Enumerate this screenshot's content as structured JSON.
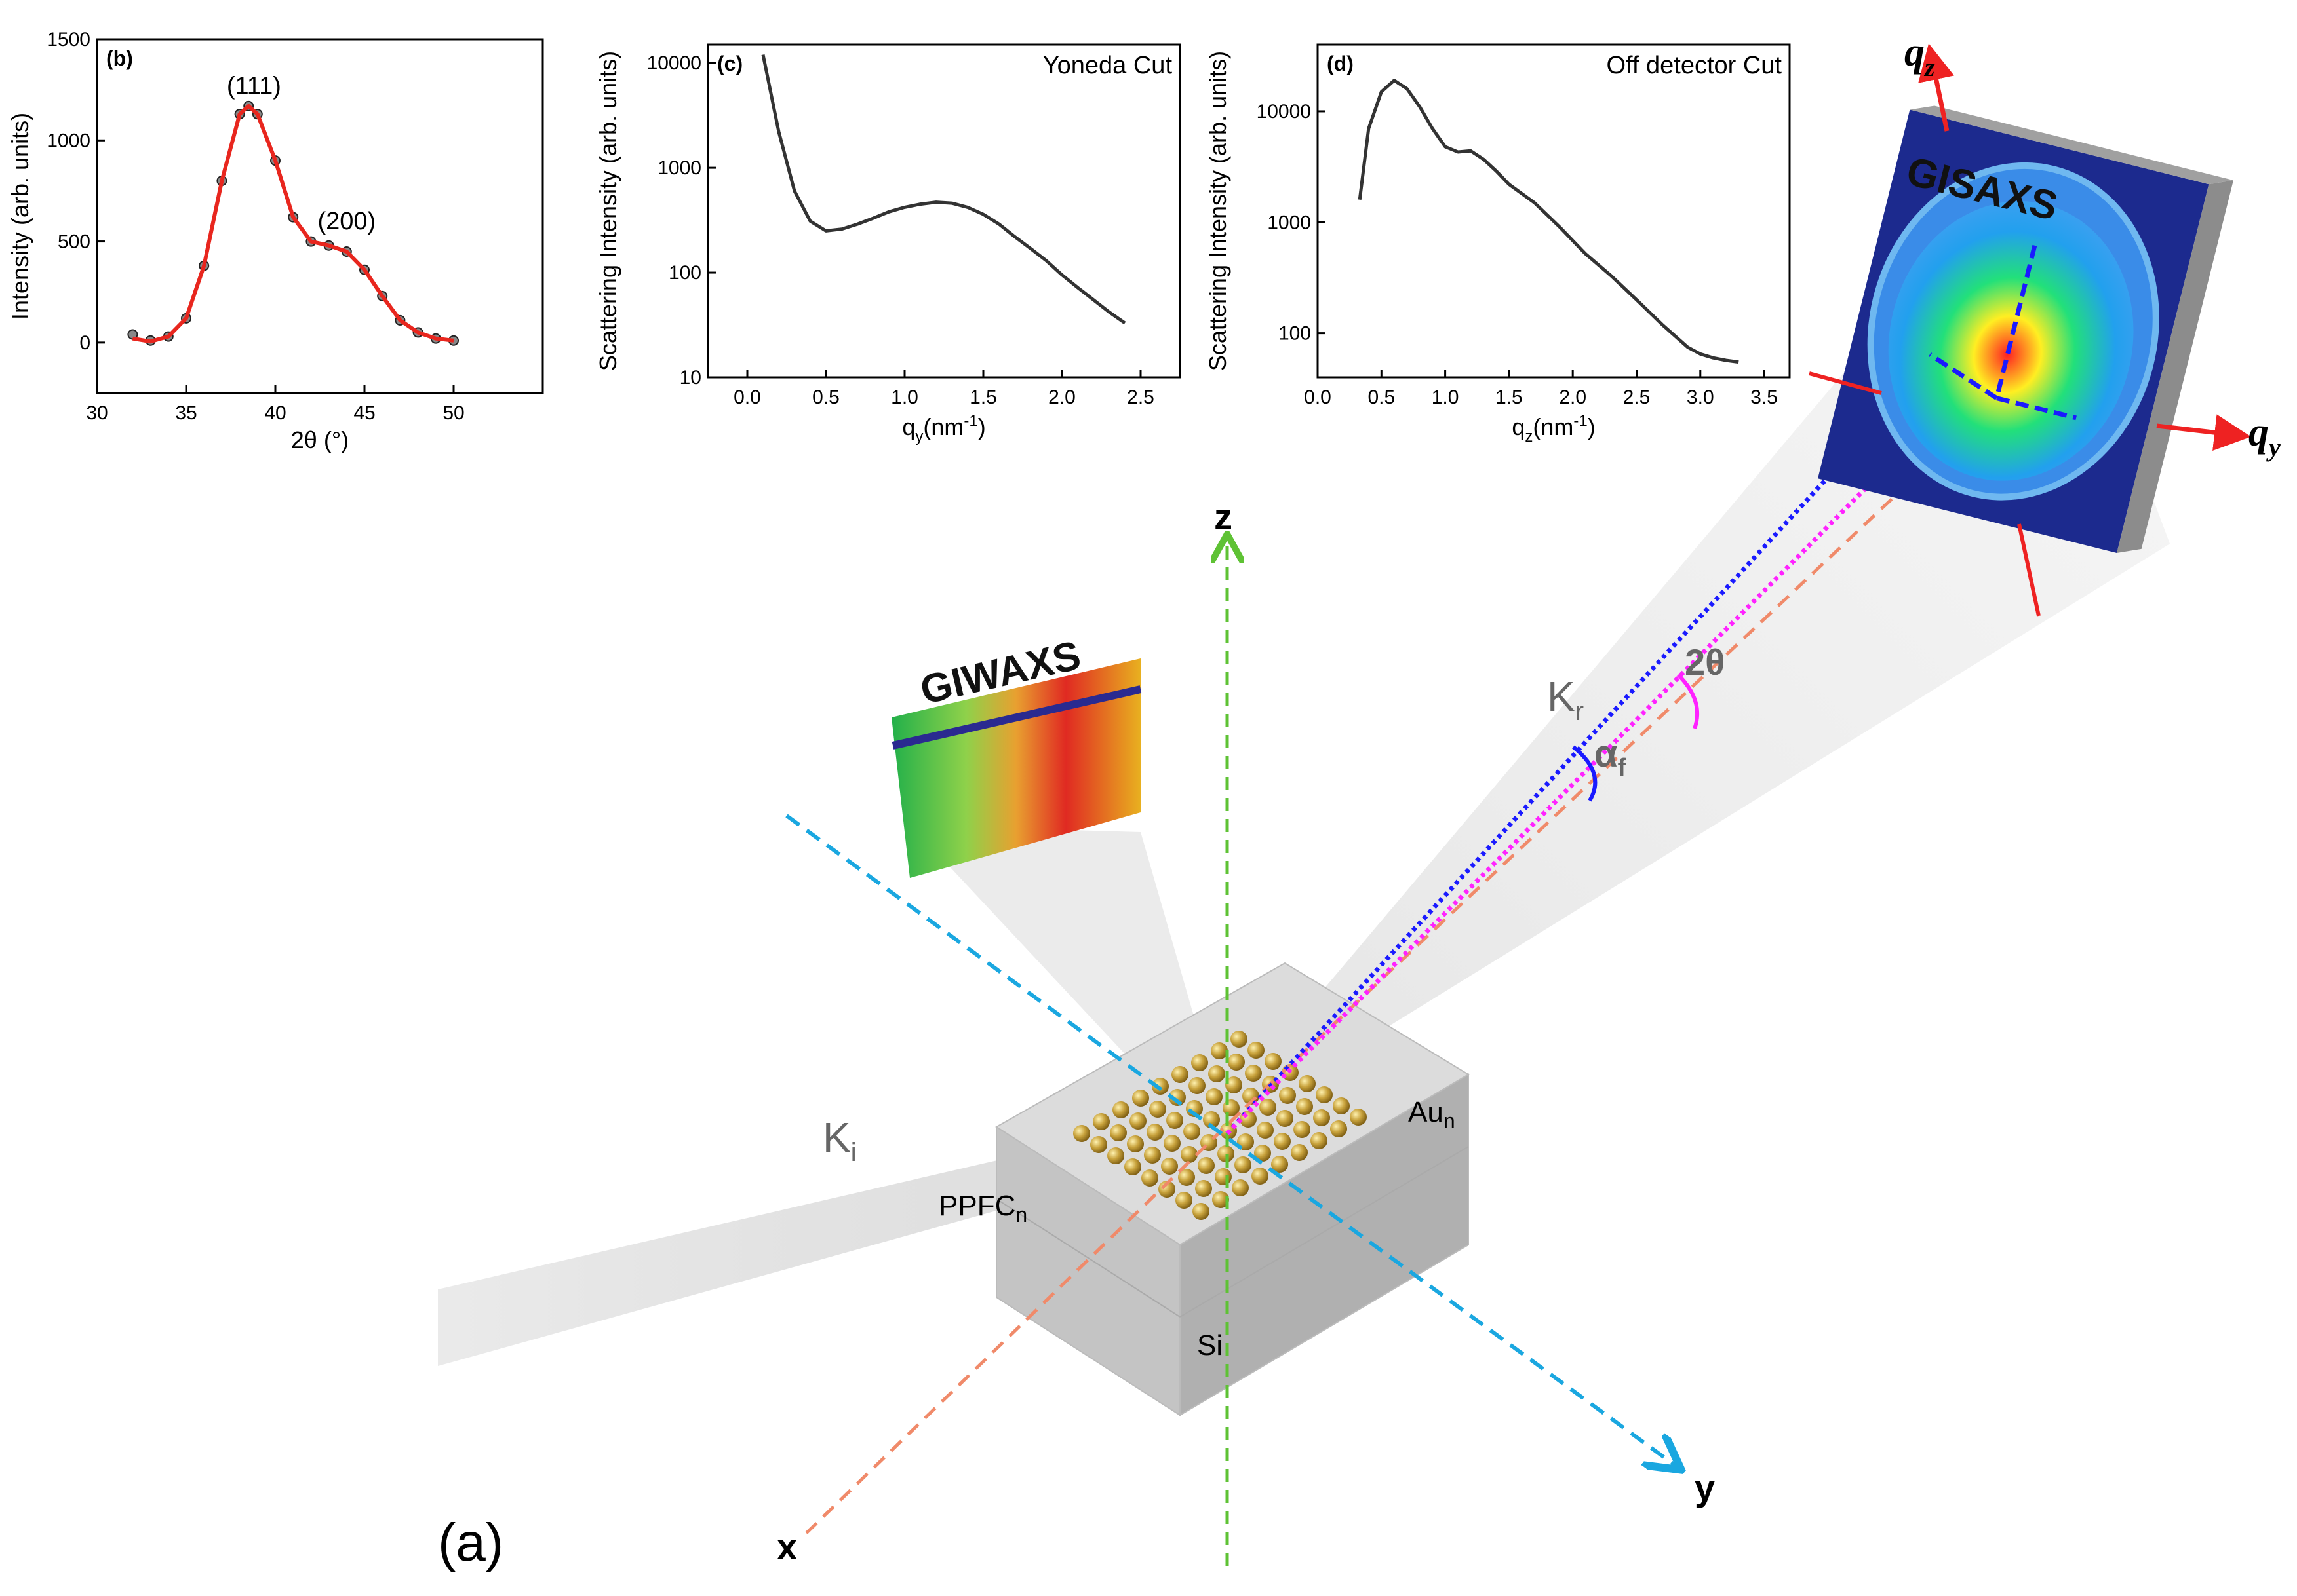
{
  "figure_label": "(a)",
  "diagram": {
    "axis_x": "x",
    "axis_y": "y",
    "axis_z": "z",
    "k_incident": "K",
    "k_incident_sub": "i",
    "k_reflected": "K",
    "k_reflected_sub": "r",
    "alpha_f": "α",
    "alpha_f_sub": "f",
    "two_theta": "2θ",
    "label_ppfc": "PPFC",
    "label_ppfc_sub": "n",
    "label_au": "Au",
    "label_au_sub": "n",
    "label_si": "Si",
    "giwaxs_title": "GIWAXS",
    "gisaxs_title": "GISAXS",
    "qz_label": "q",
    "qz_sub": "z",
    "qy_label": "q",
    "qy_sub": "y",
    "colors": {
      "z_axis": "#5ec234",
      "y_axis": "#1aa7e0",
      "x_axis": "#f08a6a",
      "kr_beam": "#1a1aff",
      "two_theta_beam": "#ff22ff",
      "detector_axes": "#ee2222",
      "nanoparticle": "#c8a23c"
    }
  },
  "chart_data": [
    {
      "id": "b",
      "panel_label": "(b)",
      "type": "scatter",
      "title": "",
      "xlabel": "2θ (°)",
      "ylabel": "Intensity (arb. units)",
      "xlim": [
        30,
        55
      ],
      "ylim": [
        -250,
        1500
      ],
      "xticks": [
        30,
        35,
        40,
        45,
        50
      ],
      "yticks": [
        0,
        500,
        1000,
        1500
      ],
      "annotations": [
        {
          "text": "(111)",
          "x": 38.8,
          "y": 1230
        },
        {
          "text": "(200)",
          "x": 44.0,
          "y": 560
        }
      ],
      "series": [
        {
          "name": "data",
          "style": "markers",
          "x": [
            32,
            33,
            34,
            35,
            36,
            37,
            38,
            38.5,
            39,
            40,
            41,
            42,
            43,
            44,
            45,
            46,
            47,
            48,
            49,
            50
          ],
          "y": [
            40,
            10,
            30,
            120,
            380,
            800,
            1130,
            1170,
            1130,
            900,
            620,
            500,
            480,
            450,
            360,
            230,
            110,
            50,
            20,
            10
          ]
        },
        {
          "name": "fit",
          "style": "line",
          "color": "#e8261e",
          "x": [
            32,
            33,
            34,
            35,
            36,
            37,
            38,
            38.5,
            39,
            40,
            41,
            42,
            43,
            44,
            45,
            46,
            47,
            48,
            49,
            50
          ],
          "y": [
            20,
            5,
            30,
            120,
            380,
            800,
            1130,
            1170,
            1130,
            900,
            620,
            500,
            480,
            450,
            360,
            230,
            110,
            50,
            20,
            10
          ]
        }
      ]
    },
    {
      "id": "c",
      "panel_label": "(c)",
      "type": "line",
      "title": "Yoneda Cut",
      "xlabel": "qy(nm-1)",
      "xlabel_main": "q",
      "xlabel_sub": "y",
      "xlabel_rest": "(nm",
      "xlabel_sup": "-1",
      "xlabel_end": ")",
      "ylabel": "Scattering Intensity (arb. units)",
      "yscale": "log",
      "xlim": [
        -0.25,
        2.75
      ],
      "ylim": [
        10,
        15000
      ],
      "xticks": [
        0.0,
        0.5,
        1.0,
        1.5,
        2.0,
        2.5
      ],
      "yticks": [
        10,
        100,
        1000,
        10000
      ],
      "series": [
        {
          "name": "yoneda",
          "x": [
            0.1,
            0.2,
            0.3,
            0.4,
            0.5,
            0.6,
            0.7,
            0.8,
            0.9,
            1.0,
            1.1,
            1.2,
            1.3,
            1.4,
            1.5,
            1.6,
            1.7,
            1.8,
            1.9,
            2.0,
            2.1,
            2.2,
            2.3,
            2.4
          ],
          "y": [
            12000,
            2200,
            600,
            310,
            250,
            260,
            290,
            330,
            380,
            420,
            450,
            470,
            460,
            420,
            360,
            290,
            220,
            170,
            130,
            95,
            72,
            55,
            42,
            33
          ]
        }
      ]
    },
    {
      "id": "d",
      "panel_label": "(d)",
      "type": "line",
      "title": "Off detector Cut",
      "xlabel": "qz(nm-1)",
      "xlabel_main": "q",
      "xlabel_sub": "z",
      "xlabel_rest": "(nm",
      "xlabel_sup": "-1",
      "xlabel_end": ")",
      "ylabel": "Scattering Intensity (arb. units)",
      "yscale": "log",
      "xlim": [
        0.0,
        3.7
      ],
      "ylim": [
        40,
        40000
      ],
      "xticks": [
        0.0,
        0.5,
        1.0,
        1.5,
        2.0,
        2.5,
        3.0,
        3.5
      ],
      "yticks": [
        100,
        1000,
        10000
      ],
      "series": [
        {
          "name": "offdetector",
          "x": [
            0.33,
            0.4,
            0.5,
            0.6,
            0.7,
            0.8,
            0.9,
            1.0,
            1.1,
            1.2,
            1.3,
            1.4,
            1.5,
            1.7,
            1.9,
            2.1,
            2.3,
            2.5,
            2.7,
            2.9,
            3.0,
            3.1,
            3.2,
            3.3
          ],
          "y": [
            1600,
            7000,
            15000,
            19000,
            16000,
            11000,
            7000,
            4800,
            4300,
            4400,
            3700,
            2900,
            2200,
            1500,
            900,
            520,
            330,
            200,
            120,
            75,
            65,
            60,
            57,
            55
          ]
        }
      ]
    }
  ]
}
